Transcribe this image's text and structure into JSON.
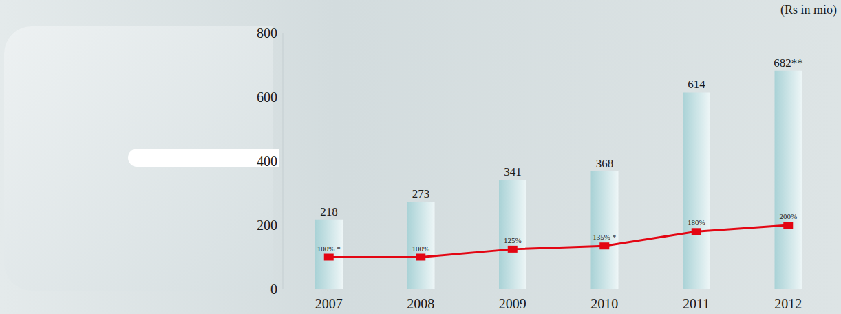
{
  "chart_data": {
    "type": "bar",
    "title": "(Rs in mio)",
    "categories": [
      "2007",
      "2008",
      "2009",
      "2010",
      "2011",
      "2012"
    ],
    "series": [
      {
        "type": "bar",
        "color": "#a9d2d6",
        "values": [
          218,
          273,
          341,
          368,
          614,
          682
        ],
        "value_labels": [
          "218",
          "273",
          "341",
          "368",
          "614",
          "682**"
        ]
      },
      {
        "type": "line",
        "color": "#e30613",
        "marker": "square",
        "values": [
          100,
          100,
          125,
          135,
          180,
          200
        ],
        "value_labels": [
          "100% *",
          "100%",
          "125%",
          "135% *",
          "180%",
          "200%"
        ]
      }
    ],
    "ylim": [
      0,
      800
    ],
    "yticks": [
      0,
      200,
      400,
      600,
      800
    ],
    "grid": false,
    "data_labels": true
  }
}
